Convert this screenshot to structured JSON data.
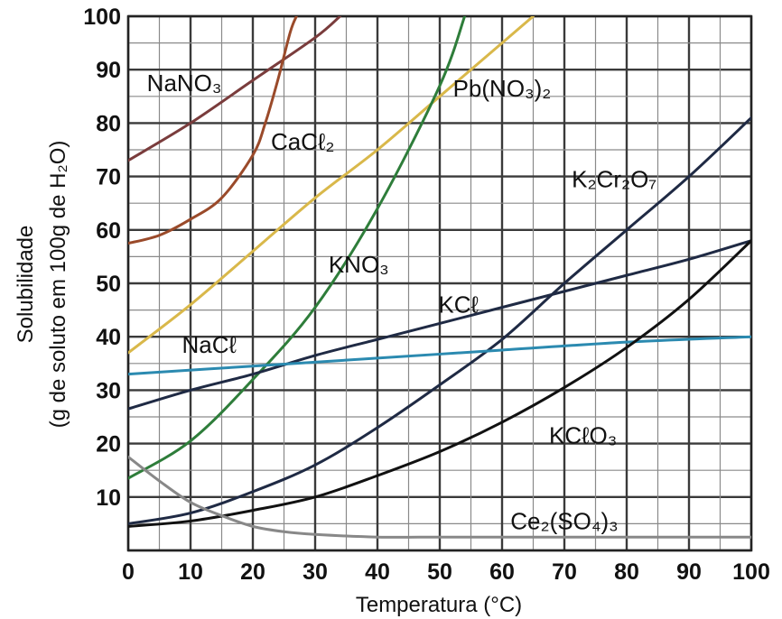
{
  "chart_data": {
    "type": "line",
    "xlabel": "Temperatura (°C)",
    "ylabel": "Solubilidade",
    "ylabel_line2": "(g de soluto em 100g de H₂O)",
    "xlim": [
      0,
      100
    ],
    "ylim": [
      0,
      100
    ],
    "x_ticks": [
      0,
      10,
      20,
      30,
      40,
      50,
      60,
      70,
      80,
      90,
      100
    ],
    "y_ticks": [
      10,
      20,
      30,
      40,
      50,
      60,
      70,
      80,
      90,
      100
    ],
    "grid": true,
    "series": [
      {
        "name": "NaNO₃",
        "color": "#7a3c3c",
        "x": [
          0,
          10,
          20,
          30,
          34
        ],
        "y": [
          73,
          80,
          88,
          96,
          100
        ]
      },
      {
        "name": "CaCℓ₂",
        "color": "#9a4a2a",
        "x": [
          0,
          5,
          10,
          15,
          20,
          22,
          24,
          26,
          27
        ],
        "y": [
          57.5,
          59,
          62,
          66,
          74,
          80,
          88,
          97,
          100
        ]
      },
      {
        "name": "Pb(NO₃)₂",
        "color": "#d9b84a",
        "x": [
          0,
          10,
          20,
          30,
          40,
          50,
          60,
          65
        ],
        "y": [
          37,
          46,
          56,
          66,
          75,
          85,
          95,
          100
        ]
      },
      {
        "name": "KNO₃",
        "color": "#2e7d3a",
        "x": [
          0,
          10,
          20,
          30,
          40,
          50,
          54
        ],
        "y": [
          13.5,
          20.5,
          32,
          45.5,
          64,
          87,
          100
        ]
      },
      {
        "name": "K₂Cr₂O₇",
        "color": "#1f2a44",
        "x": [
          0,
          10,
          20,
          30,
          40,
          50,
          60,
          70,
          80,
          90,
          100
        ],
        "y": [
          5,
          7,
          11,
          16,
          23,
          31,
          39.5,
          50,
          60,
          70,
          81
        ]
      },
      {
        "name": "KCℓ",
        "color": "#1f2a44",
        "x": [
          0,
          10,
          20,
          30,
          40,
          50,
          60,
          70,
          80,
          90,
          100
        ],
        "y": [
          26.5,
          30,
          33,
          36.5,
          39.5,
          42.5,
          45.5,
          48.5,
          51.5,
          54.5,
          58
        ]
      },
      {
        "name": "NaCℓ",
        "color": "#2b8ab0",
        "x": [
          0,
          20,
          40,
          60,
          80,
          100
        ],
        "y": [
          33,
          34.5,
          36,
          37.5,
          39,
          40
        ]
      },
      {
        "name": "KCℓO₃",
        "color": "#111111",
        "x": [
          0,
          10,
          20,
          30,
          40,
          50,
          60,
          70,
          80,
          90,
          100
        ],
        "y": [
          4.5,
          5.5,
          7.5,
          10,
          14,
          18.5,
          24,
          30.5,
          38,
          47,
          58
        ]
      },
      {
        "name": "Ce₂(SO₄)₃",
        "color": "#888888",
        "x": [
          0,
          5,
          10,
          15,
          20,
          25,
          30,
          40,
          50,
          60,
          70,
          80,
          90,
          100
        ],
        "y": [
          17.5,
          13,
          9,
          6.5,
          4.5,
          3.5,
          3,
          2.5,
          2.5,
          2.5,
          2.5,
          2.5,
          2.5,
          2.5
        ]
      }
    ]
  }
}
